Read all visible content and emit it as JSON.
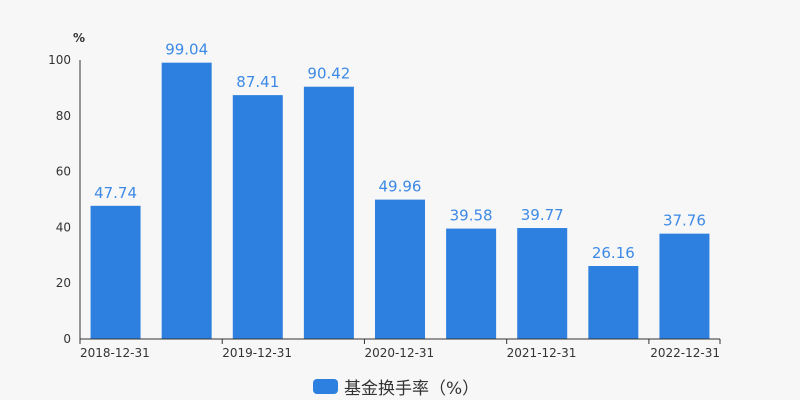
{
  "chart_data": {
    "type": "bar",
    "categories": [
      "2018-12-31",
      "",
      "2019-12-31",
      "",
      "2020-12-31",
      "",
      "2021-12-31",
      "",
      "2022-12-31"
    ],
    "values": [
      47.74,
      99.04,
      87.41,
      90.42,
      49.96,
      39.58,
      39.77,
      26.16,
      37.76
    ],
    "data_labels": [
      "47.74",
      "99.04",
      "87.41",
      "90.42",
      "49.96",
      "39.58",
      "39.77",
      "26.16",
      "37.76"
    ],
    "ylabel": "%",
    "ylim": [
      0,
      100
    ],
    "yticks": [
      "0",
      "20",
      "40",
      "60",
      "80",
      "100"
    ],
    "grid": false,
    "legend": {
      "position": "bottom",
      "entries": [
        "基金换手率（%）"
      ]
    },
    "colors": {
      "bar": "#2e80e0",
      "label": "#3d8ae6",
      "axis": "#333333",
      "background": "#f7f7f7"
    }
  }
}
